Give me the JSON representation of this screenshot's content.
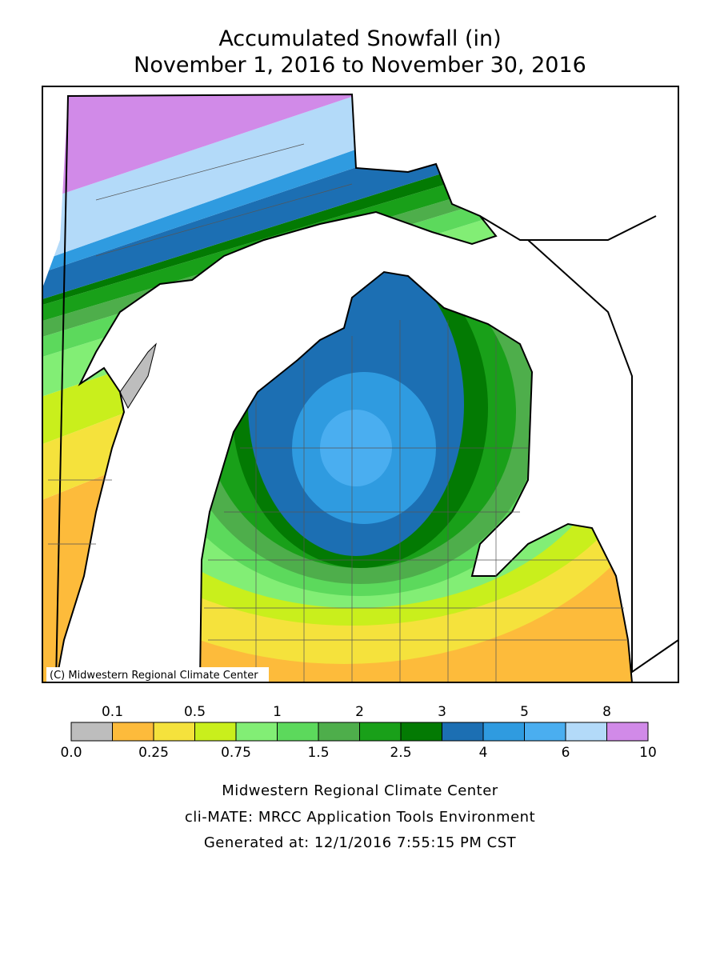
{
  "header": {
    "title_line1": "Accumulated Snowfall (in)",
    "title_line2": "November 1, 2016 to November 30, 2016"
  },
  "map": {
    "copyright": "(C) Midwestern Regional Climate Center"
  },
  "legend": {
    "upper_labels": [
      "0.1",
      "0.5",
      "1",
      "2",
      "3",
      "5",
      "8"
    ],
    "lower_labels": [
      "0.0",
      "0.25",
      "0.75",
      "1.5",
      "2.5",
      "4",
      "6",
      "10"
    ],
    "colors": [
      "#bdbdbd",
      "#fdbb3b",
      "#f5e23c",
      "#c9ef1c",
      "#82ee75",
      "#5cd95c",
      "#4eae4b",
      "#19a019",
      "#037a03",
      "#1c6fb3",
      "#2f9be0",
      "#4aaef0",
      "#b3daf9",
      "#d18ae8"
    ]
  },
  "footer": {
    "line1": "Midwestern Regional Climate Center",
    "line2": "cli-MATE: MRCC Application Tools Environment",
    "line3": "Generated at: 12/1/2016 7:55:15 PM CST"
  }
}
